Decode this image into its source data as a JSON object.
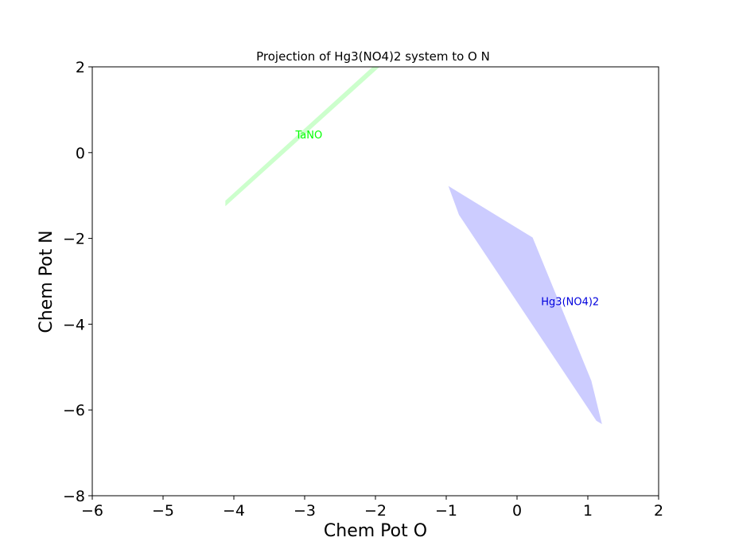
{
  "chart_data": {
    "type": "area",
    "title": "Projection of Hg3(NO4)2 system to O N",
    "xlabel": "Chem Pot O",
    "ylabel": "Chem Pot N",
    "xlim": [
      -6,
      2
    ],
    "ylim": [
      -8,
      2
    ],
    "xticks": [
      -6,
      -5,
      -4,
      -3,
      -2,
      -1,
      0,
      1,
      2
    ],
    "yticks": [
      -8,
      -6,
      -4,
      -2,
      0,
      2
    ],
    "xtick_labels": [
      "−6",
      "−5",
      "−4",
      "−3",
      "−2",
      "−1",
      "0",
      "1",
      "2"
    ],
    "ytick_labels": [
      "−8",
      "−6",
      "−4",
      "−2",
      "0",
      "2"
    ],
    "grid": false,
    "series": [
      {
        "name": "TaNO",
        "color": "#ccffcc",
        "label_color": "#00ff00",
        "label_at": [
          -2.94,
          0.33
        ],
        "polygon": [
          [
            -4.12,
            -1.12
          ],
          [
            -2.04,
            2.0
          ],
          [
            -1.94,
            2.0
          ],
          [
            -4.12,
            -1.25
          ]
        ]
      },
      {
        "name": "Hg3(NO4)2",
        "color": "#ccccff",
        "label_color": "#0000dd",
        "label_at": [
          0.75,
          -3.56
        ],
        "polygon": [
          [
            -0.97,
            -0.78
          ],
          [
            0.22,
            -1.98
          ],
          [
            1.05,
            -5.32
          ],
          [
            1.2,
            -6.33
          ],
          [
            1.12,
            -6.25
          ],
          [
            -0.82,
            -1.45
          ]
        ]
      }
    ]
  }
}
